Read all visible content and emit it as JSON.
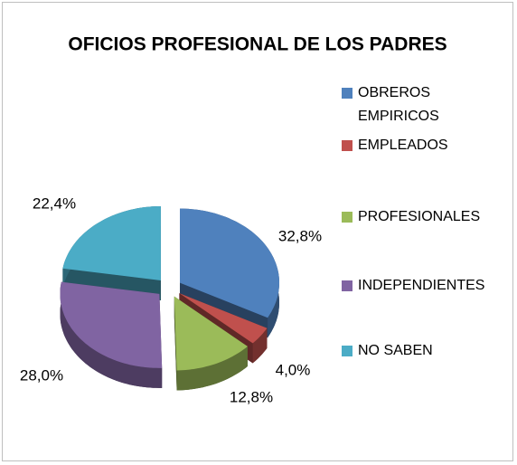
{
  "chart_data": {
    "type": "pie",
    "title": "OFICIOS PROFESIONAL DE LOS PADRES",
    "categories": [
      "OBREROS EMPIRICOS",
      "EMPLEADOS",
      "PROFESIONALES",
      "INDEPENDIENTES",
      "NO SABEN"
    ],
    "values": [
      32.8,
      4.0,
      12.8,
      28.0,
      22.4
    ],
    "value_labels": [
      "32,8%",
      "4,0%",
      "12,8%",
      "28,0%",
      "22,4%"
    ],
    "colors": [
      "#4f81bd",
      "#c0504d",
      "#9bbb59",
      "#8064a2",
      "#4bacc6"
    ],
    "legend": "right",
    "exploded": true,
    "three_d": true
  }
}
